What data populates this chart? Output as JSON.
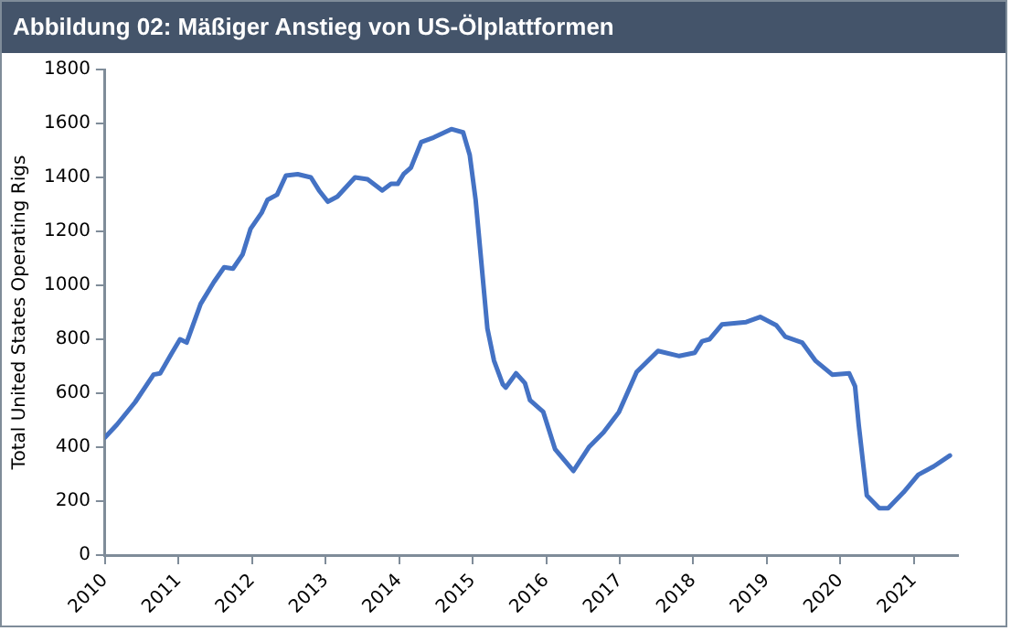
{
  "chart_data": {
    "type": "line",
    "title": "Abbildung 02: Mäßiger Anstieg von US-Ölplattformen",
    "ylabel": "Total United States Operating Rigs",
    "series": [
      {
        "color": "#4472c4",
        "x": [
          2010.0,
          2010.16,
          2010.41,
          2010.66,
          2010.75,
          2010.9,
          2011.02,
          2011.11,
          2011.3,
          2011.48,
          2011.62,
          2011.74,
          2011.87,
          2011.98,
          2012.13,
          2012.21,
          2012.34,
          2012.46,
          2012.62,
          2012.8,
          2012.91,
          2013.03,
          2013.16,
          2013.4,
          2013.57,
          2013.77,
          2013.89,
          2013.98,
          2014.06,
          2014.16,
          2014.3,
          2014.47,
          2014.71,
          2014.87,
          2014.96,
          2015.04,
          2015.12,
          2015.2,
          2015.29,
          2015.41,
          2015.45,
          2015.59,
          2015.71,
          2015.78,
          2015.96,
          2016.12,
          2016.37,
          2016.58,
          2016.78,
          2016.99,
          2017.23,
          2017.52,
          2017.81,
          2018.02,
          2018.12,
          2018.22,
          2018.39,
          2018.72,
          2018.91,
          2019.13,
          2019.25,
          2019.48,
          2019.66,
          2019.89,
          2020.12,
          2020.2,
          2020.25,
          2020.36,
          2020.53,
          2020.65,
          2020.86,
          2021.06,
          2021.27,
          2021.49
        ],
        "values": [
          436,
          483,
          567,
          669,
          674,
          745,
          800,
          788,
          931,
          1012,
          1067,
          1062,
          1114,
          1210,
          1269,
          1317,
          1336,
          1407,
          1412,
          1400,
          1352,
          1310,
          1329,
          1400,
          1393,
          1352,
          1376,
          1376,
          1412,
          1436,
          1531,
          1548,
          1579,
          1567,
          1483,
          1317,
          1079,
          840,
          721,
          633,
          621,
          674,
          638,
          574,
          531,
          393,
          312,
          400,
          455,
          531,
          679,
          757,
          738,
          750,
          793,
          800,
          855,
          864,
          883,
          852,
          810,
          788,
          721,
          669,
          674,
          626,
          483,
          221,
          174,
          174,
          233,
          298,
          329,
          369
        ]
      }
    ],
    "xlim": [
      2010,
      2021.6
    ],
    "xticks": [
      2010,
      2011,
      2012,
      2013,
      2014,
      2015,
      2016,
      2017,
      2018,
      2019,
      2020,
      2021
    ],
    "ylim": [
      0,
      1800
    ],
    "yticks": [
      0,
      200,
      400,
      600,
      800,
      1000,
      1200,
      1400,
      1600,
      1800
    ],
    "grid": false,
    "legend": false,
    "marker": "none",
    "line_style": "solid"
  }
}
